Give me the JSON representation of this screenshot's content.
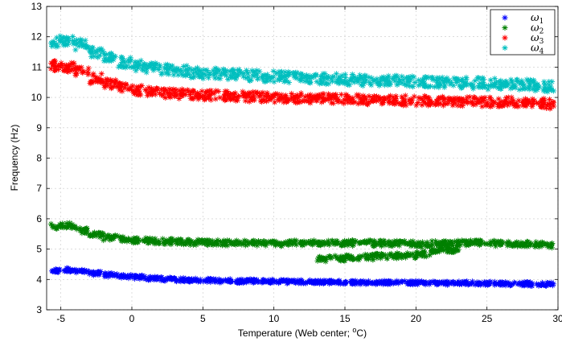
{
  "chart_data": {
    "type": "scatter",
    "title": "",
    "xlabel": "Temperature (Web center; ",
    "xlabel_unit_sup": "o",
    "xlabel_unit": "C)",
    "ylabel": "Frequency (Hz)",
    "xlim": [
      -6,
      30
    ],
    "ylim": [
      3,
      13
    ],
    "xticks": [
      -5,
      0,
      5,
      10,
      15,
      20,
      25,
      30
    ],
    "yticks": [
      3,
      4,
      5,
      6,
      7,
      8,
      9,
      10,
      11,
      12,
      13
    ],
    "grid": true,
    "legend": "top-right",
    "marker": "asterisk",
    "series": [
      {
        "name": "ω1",
        "legend_base": "ω",
        "legend_sub": "1",
        "color": "#0000ff",
        "x": [
          -5.5,
          -4.5,
          -3.5,
          -2.5,
          -1.5,
          -0.5,
          0.5,
          1.5,
          2.5,
          3.5,
          4.5,
          5.5,
          6.5,
          7.5,
          8.5,
          9.5,
          10.5,
          11.5,
          12.5,
          13.5,
          14.5,
          15.5,
          16.5,
          17.5,
          18.5,
          19.5,
          20.5,
          21.5,
          22.5,
          23.5,
          24.5,
          25.5,
          26.5,
          27.5,
          28.5,
          29.5
        ],
        "y": [
          4.28,
          4.32,
          4.26,
          4.2,
          4.15,
          4.1,
          4.07,
          4.04,
          4.01,
          3.99,
          3.98,
          3.97,
          3.96,
          3.95,
          3.95,
          3.94,
          3.93,
          3.93,
          3.92,
          3.92,
          3.91,
          3.91,
          3.9,
          3.9,
          3.9,
          3.89,
          3.89,
          3.88,
          3.88,
          3.88,
          3.87,
          3.87,
          3.86,
          3.86,
          3.85,
          3.85
        ],
        "spread": 0.06
      },
      {
        "name": "ω2",
        "legend_base": "ω",
        "legend_sub": "2",
        "color": "#008000",
        "x": [
          -5.5,
          -4.5,
          -3.5,
          -2.5,
          -1.5,
          -0.5,
          0.5,
          1.5,
          2.5,
          3.5,
          4.5,
          5.5,
          6.5,
          7.5,
          8.5,
          9.5,
          10.5,
          11.5,
          12.5,
          13.5,
          14.5,
          15.5,
          16.5,
          17.5,
          18.5,
          19.5,
          20.5,
          21.5,
          22.5,
          23.5,
          24.5,
          25.5,
          26.5,
          27.5,
          28.5,
          29.5,
          13.5,
          14.5,
          15.5,
          16.5,
          17.5,
          18.5,
          19.5,
          20.5,
          21.5,
          22.5
        ],
        "y": [
          5.75,
          5.78,
          5.62,
          5.48,
          5.38,
          5.33,
          5.3,
          5.27,
          5.25,
          5.24,
          5.23,
          5.22,
          5.21,
          5.2,
          5.2,
          5.19,
          5.19,
          5.2,
          5.2,
          5.21,
          5.21,
          5.2,
          5.2,
          5.19,
          5.18,
          5.18,
          5.17,
          5.18,
          5.19,
          5.2,
          5.2,
          5.19,
          5.18,
          5.17,
          5.15,
          5.12,
          4.68,
          4.7,
          4.72,
          4.74,
          4.76,
          4.78,
          4.8,
          4.85,
          4.92,
          4.98
        ],
        "spread": 0.09
      },
      {
        "name": "ω3",
        "legend_base": "ω",
        "legend_sub": "3",
        "color": "#ff0000",
        "x": [
          -5.5,
          -4.5,
          -3.5,
          -2.5,
          -1.5,
          -0.5,
          0.5,
          1.5,
          2.5,
          3.5,
          4.5,
          5.5,
          6.5,
          7.5,
          8.5,
          9.5,
          10.5,
          11.5,
          12.5,
          13.5,
          14.5,
          15.5,
          16.5,
          17.5,
          18.5,
          19.5,
          20.5,
          21.5,
          22.5,
          23.5,
          24.5,
          25.5,
          26.5,
          27.5,
          28.5,
          29.5
        ],
        "y": [
          11.05,
          11.0,
          10.85,
          10.62,
          10.45,
          10.32,
          10.24,
          10.18,
          10.14,
          10.11,
          10.09,
          10.07,
          10.05,
          10.03,
          10.02,
          10.0,
          9.99,
          9.98,
          9.97,
          9.96,
          9.95,
          9.94,
          9.93,
          9.92,
          9.91,
          9.9,
          9.89,
          9.88,
          9.88,
          9.87,
          9.86,
          9.85,
          9.84,
          9.83,
          9.82,
          9.78
        ],
        "spread": 0.16
      },
      {
        "name": "ω4",
        "legend_base": "ω",
        "legend_sub": "4",
        "color": "#00bfbf",
        "x": [
          -5.5,
          -4.5,
          -3.5,
          -2.5,
          -1.5,
          -0.5,
          0.5,
          1.5,
          2.5,
          3.5,
          4.5,
          5.5,
          6.5,
          7.5,
          8.5,
          9.5,
          10.5,
          11.5,
          12.5,
          13.5,
          14.5,
          15.5,
          16.5,
          17.5,
          18.5,
          19.5,
          20.5,
          21.5,
          22.5,
          23.5,
          24.5,
          25.5,
          26.5,
          27.5,
          28.5,
          29.5
        ],
        "y": [
          11.85,
          11.9,
          11.75,
          11.5,
          11.3,
          11.15,
          11.05,
          10.98,
          10.92,
          10.87,
          10.83,
          10.8,
          10.77,
          10.74,
          10.72,
          10.7,
          10.68,
          10.66,
          10.64,
          10.62,
          10.6,
          10.58,
          10.56,
          10.55,
          10.54,
          10.53,
          10.52,
          10.5,
          10.49,
          10.48,
          10.47,
          10.45,
          10.44,
          10.42,
          10.4,
          10.35
        ],
        "spread": 0.18
      }
    ]
  }
}
